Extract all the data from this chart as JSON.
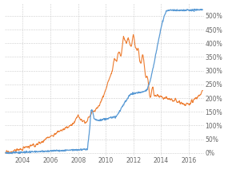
{
  "background_color": "#ffffff",
  "grid_color": "#cccccc",
  "blue_color": "#5b9bd5",
  "orange_color": "#ed7d31",
  "ylim": [
    -10,
    545
  ],
  "yticks": [
    0,
    50,
    100,
    150,
    200,
    250,
    300,
    350,
    400,
    450,
    500
  ],
  "xlim_start": 2002.7,
  "xlim_end": 2017.1,
  "xticks": [
    2004,
    2006,
    2008,
    2010,
    2012,
    2014,
    2016
  ]
}
